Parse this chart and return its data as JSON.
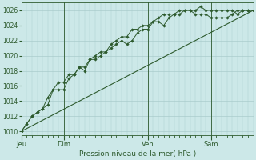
{
  "xlabel": "Pression niveau de la mer( hPa )",
  "ylim": [
    1009.5,
    1027
  ],
  "yticks": [
    1010,
    1012,
    1014,
    1016,
    1018,
    1020,
    1022,
    1024,
    1026
  ],
  "bg_color": "#cce8e8",
  "grid_color": "#aacccc",
  "line_color": "#2d5a2d",
  "day_labels": [
    "Jeu",
    "Dim",
    "Ven",
    "Sam"
  ],
  "day_positions": [
    0,
    48,
    144,
    216
  ],
  "total_hours": 264,
  "series1": [
    [
      0,
      1010.0
    ],
    [
      6,
      1011.0
    ],
    [
      12,
      1012.0
    ],
    [
      18,
      1012.5
    ],
    [
      24,
      1013.0
    ],
    [
      30,
      1013.5
    ],
    [
      36,
      1015.5
    ],
    [
      42,
      1015.5
    ],
    [
      48,
      1015.5
    ],
    [
      54,
      1017.0
    ],
    [
      60,
      1017.5
    ],
    [
      66,
      1018.5
    ],
    [
      72,
      1018.0
    ],
    [
      78,
      1019.5
    ],
    [
      84,
      1019.5
    ],
    [
      90,
      1020.0
    ],
    [
      96,
      1020.5
    ],
    [
      102,
      1021.0
    ],
    [
      108,
      1021.5
    ],
    [
      114,
      1022.0
    ],
    [
      120,
      1021.5
    ],
    [
      126,
      1022.0
    ],
    [
      132,
      1023.0
    ],
    [
      138,
      1023.5
    ],
    [
      144,
      1023.5
    ],
    [
      150,
      1024.5
    ],
    [
      156,
      1024.5
    ],
    [
      162,
      1024.0
    ],
    [
      168,
      1025.0
    ],
    [
      174,
      1025.5
    ],
    [
      180,
      1025.5
    ],
    [
      186,
      1026.0
    ],
    [
      192,
      1026.0
    ],
    [
      198,
      1026.0
    ],
    [
      204,
      1026.5
    ],
    [
      210,
      1026.0
    ],
    [
      216,
      1026.0
    ],
    [
      222,
      1026.0
    ],
    [
      228,
      1026.0
    ],
    [
      234,
      1026.0
    ],
    [
      240,
      1026.0
    ],
    [
      246,
      1025.5
    ],
    [
      252,
      1026.0
    ],
    [
      258,
      1026.0
    ],
    [
      264,
      1026.0
    ]
  ],
  "series2": [
    [
      0,
      1010.0
    ],
    [
      264,
      1026.0
    ]
  ],
  "series3": [
    [
      0,
      1010.0
    ],
    [
      6,
      1011.0
    ],
    [
      12,
      1012.0
    ],
    [
      18,
      1012.5
    ],
    [
      24,
      1013.0
    ],
    [
      30,
      1014.5
    ],
    [
      36,
      1015.5
    ],
    [
      42,
      1016.5
    ],
    [
      48,
      1016.5
    ],
    [
      54,
      1017.5
    ],
    [
      60,
      1017.5
    ],
    [
      66,
      1018.5
    ],
    [
      72,
      1018.5
    ],
    [
      78,
      1019.5
    ],
    [
      84,
      1020.0
    ],
    [
      90,
      1020.5
    ],
    [
      96,
      1020.5
    ],
    [
      102,
      1021.5
    ],
    [
      108,
      1022.0
    ],
    [
      114,
      1022.5
    ],
    [
      120,
      1022.5
    ],
    [
      126,
      1023.5
    ],
    [
      132,
      1023.5
    ],
    [
      138,
      1024.0
    ],
    [
      144,
      1024.0
    ],
    [
      150,
      1024.5
    ],
    [
      156,
      1025.0
    ],
    [
      162,
      1025.5
    ],
    [
      168,
      1025.5
    ],
    [
      174,
      1025.5
    ],
    [
      180,
      1026.0
    ],
    [
      186,
      1026.0
    ],
    [
      192,
      1026.0
    ],
    [
      198,
      1025.5
    ],
    [
      204,
      1025.5
    ],
    [
      210,
      1025.5
    ],
    [
      216,
      1025.0
    ],
    [
      222,
      1025.0
    ],
    [
      228,
      1025.0
    ],
    [
      234,
      1025.0
    ],
    [
      240,
      1025.5
    ],
    [
      246,
      1026.0
    ],
    [
      252,
      1026.0
    ],
    [
      258,
      1026.0
    ],
    [
      264,
      1026.0
    ]
  ]
}
